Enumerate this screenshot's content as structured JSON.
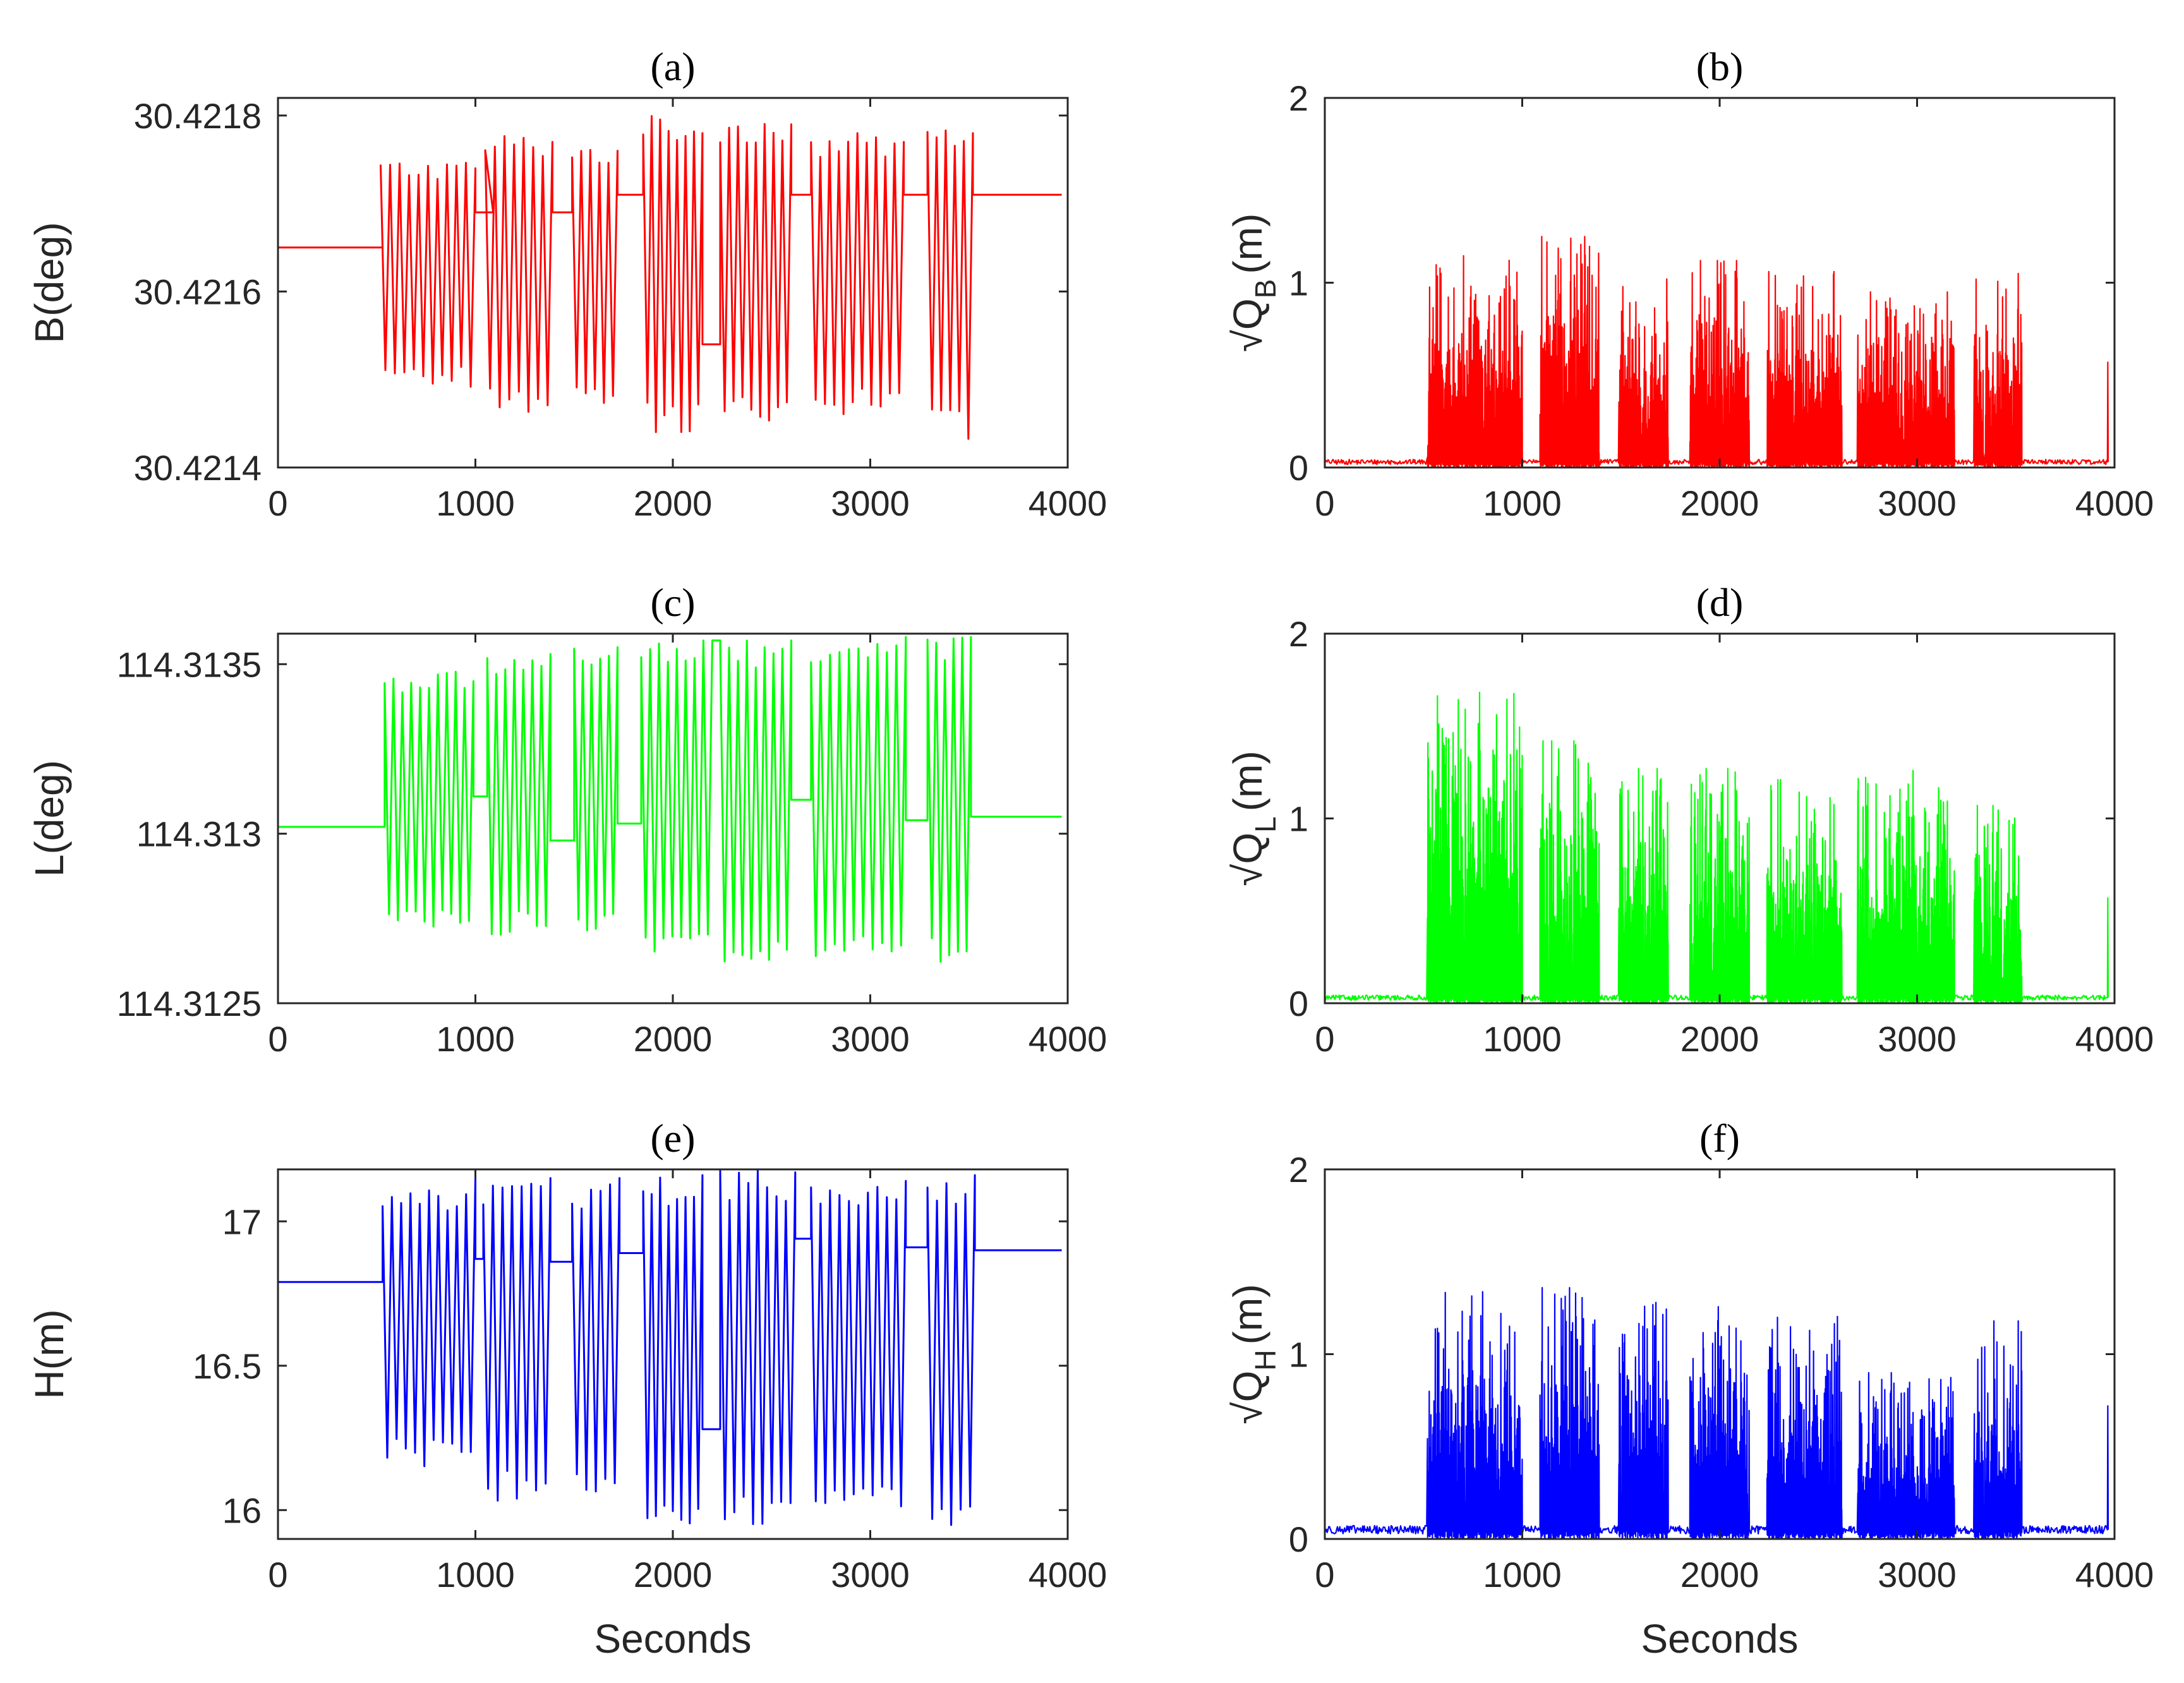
{
  "figure": {
    "xlabel": "Seconds"
  },
  "chart_data": [
    {
      "id": "a",
      "type": "line",
      "title": "(a)",
      "ylabel": "B(deg)",
      "color": "#ff0000",
      "trace": "position",
      "xlim": [
        0,
        4000
      ],
      "ylim": [
        30.4214,
        30.42182
      ],
      "xticks": [
        0,
        1000,
        2000,
        3000,
        4000
      ],
      "xtick_labels": [
        "0",
        "1000",
        "2000",
        "3000",
        "4000"
      ],
      "yticks": [
        30.4214,
        30.4216,
        30.4218
      ],
      "ytick_labels": [
        "30.4214",
        "30.4216",
        "30.4218"
      ],
      "x_end": 3970,
      "bursts": [
        [
          520,
          1000,
          30.42149,
          30.42175,
          30.42174
        ],
        [
          1050,
          1390,
          30.42146,
          30.42178,
          30.42177
        ],
        [
          1490,
          1720,
          30.42147,
          30.42177,
          30.42176
        ],
        [
          1850,
          2150,
          30.42144,
          30.4218,
          30.42178
        ],
        [
          2240,
          2600,
          30.42145,
          30.4218,
          30.42179
        ],
        [
          2700,
          3170,
          30.42146,
          30.42178,
          30.42177
        ],
        [
          3290,
          3520,
          30.42143,
          30.42179,
          30.42178
        ]
      ],
      "flats": [
        [
          0,
          530,
          30.42165
        ],
        [
          1000,
          1090,
          30.42169
        ],
        [
          1390,
          1490,
          30.42169
        ],
        [
          1720,
          1850,
          30.42171
        ],
        [
          2150,
          2240,
          30.42154
        ],
        [
          2600,
          2700,
          30.42171
        ],
        [
          3170,
          3290,
          30.42171
        ],
        [
          3520,
          3970,
          30.42171
        ]
      ],
      "note": "Latitude B of the kinematic trajectory; flats sit between oscillating survey bursts"
    },
    {
      "id": "b",
      "type": "line",
      "title": "(b)",
      "ylabel_main": "√Q",
      "ylabel_sub": "B",
      "ylabel_tail": "(m)",
      "color": "#ff0000",
      "trace": "noise",
      "xlim": [
        0,
        4000
      ],
      "ylim": [
        0,
        2
      ],
      "xticks": [
        0,
        1000,
        2000,
        3000,
        4000
      ],
      "xtick_labels": [
        "0",
        "1000",
        "2000",
        "3000",
        "4000"
      ],
      "yticks": [
        0,
        1,
        2
      ],
      "ytick_labels": [
        "0",
        "1",
        "2"
      ],
      "x_end": 3970,
      "baseline": 0.03,
      "final_spike": 0.57,
      "bursts": [
        [
          520,
          1000,
          1.15
        ],
        [
          1090,
          1390,
          1.25
        ],
        [
          1490,
          1740,
          1.02
        ],
        [
          1850,
          2150,
          1.12
        ],
        [
          2240,
          2620,
          1.06
        ],
        [
          2700,
          3190,
          0.95
        ],
        [
          3290,
          3530,
          1.05
        ]
      ]
    },
    {
      "id": "c",
      "type": "line",
      "title": "(c)",
      "ylabel": "L(deg)",
      "color": "#00ff00",
      "trace": "position",
      "xlim": [
        0,
        4000
      ],
      "ylim": [
        114.3125,
        114.31359
      ],
      "xticks": [
        0,
        1000,
        2000,
        3000,
        4000
      ],
      "xtick_labels": [
        "0",
        "1000",
        "2000",
        "3000",
        "4000"
      ],
      "yticks": [
        114.3125,
        114.313,
        114.3135
      ],
      "ytick_labels": [
        "114.3125",
        "114.313",
        "114.3135"
      ],
      "x_end": 3970,
      "bursts": [
        [
          540,
          990,
          114.31272,
          114.31348,
          114.31345
        ],
        [
          1060,
          1380,
          114.31269,
          114.31354,
          114.31353
        ],
        [
          1500,
          1720,
          114.31269,
          114.31356,
          114.31355
        ],
        [
          1840,
          2200,
          114.31263,
          114.31357,
          114.31357
        ],
        [
          2240,
          2600,
          114.31262,
          114.31357,
          114.31357
        ],
        [
          2700,
          3180,
          114.31261,
          114.31358,
          114.31358
        ],
        [
          3290,
          3510,
          114.31262,
          114.31358,
          114.31358
        ]
      ],
      "flats": [
        [
          0,
          540,
          114.31302
        ],
        [
          990,
          1060,
          114.31311
        ],
        [
          1380,
          1500,
          114.31298
        ],
        [
          1720,
          1840,
          114.31303
        ],
        [
          2200,
          2240,
          114.31357
        ],
        [
          2600,
          2700,
          114.3131
        ],
        [
          3180,
          3290,
          114.31304
        ],
        [
          3510,
          3970,
          114.31305
        ]
      ]
    },
    {
      "id": "d",
      "type": "line",
      "title": "(d)",
      "ylabel_main": "√Q",
      "ylabel_sub": "L",
      "ylabel_tail": "(m)",
      "color": "#00ff00",
      "trace": "noise",
      "xlim": [
        0,
        4000
      ],
      "ylim": [
        0,
        2
      ],
      "xticks": [
        0,
        1000,
        2000,
        3000,
        4000
      ],
      "xtick_labels": [
        "0",
        "1000",
        "2000",
        "3000",
        "4000"
      ],
      "yticks": [
        0,
        1,
        2
      ],
      "ytick_labels": [
        "0",
        "1",
        "2"
      ],
      "x_end": 3970,
      "baseline": 0.03,
      "final_spike": 0.57,
      "bursts": [
        [
          520,
          1000,
          1.71
        ],
        [
          1090,
          1390,
          1.42
        ],
        [
          1490,
          1740,
          1.27
        ],
        [
          1850,
          2150,
          1.27
        ],
        [
          2240,
          2620,
          1.21
        ],
        [
          2700,
          3190,
          1.26
        ],
        [
          3290,
          3530,
          1.07
        ]
      ]
    },
    {
      "id": "e",
      "type": "line",
      "title": "(e)",
      "ylabel": "H(m)",
      "color": "#0000ff",
      "trace": "position",
      "xlim": [
        0,
        4000
      ],
      "ylim": [
        15.9,
        17.18
      ],
      "xticks": [
        0,
        1000,
        2000,
        3000,
        4000
      ],
      "xtick_labels": [
        "0",
        "1000",
        "2000",
        "3000",
        "4000"
      ],
      "yticks": [
        16,
        16.5,
        17
      ],
      "ytick_labels": [
        "16",
        "16.5",
        "17"
      ],
      "x_end": 3970,
      "bursts": [
        [
          530,
          1000,
          16.15,
          17.12,
          17.15
        ],
        [
          1040,
          1380,
          16.03,
          17.15,
          17.15
        ],
        [
          1490,
          1730,
          16.06,
          17.13,
          17.15
        ],
        [
          1850,
          2150,
          15.92,
          17.16,
          17.16
        ],
        [
          2240,
          2620,
          15.95,
          17.18,
          17.17
        ],
        [
          2700,
          3180,
          16.0,
          17.14,
          17.14
        ],
        [
          3290,
          3530,
          15.94,
          17.15,
          17.16
        ]
      ],
      "flats": [
        [
          0,
          530,
          16.79
        ],
        [
          1000,
          1040,
          16.87
        ],
        [
          1380,
          1490,
          16.86
        ],
        [
          1730,
          1850,
          16.89
        ],
        [
          2150,
          2240,
          16.28
        ],
        [
          2620,
          2700,
          16.94
        ],
        [
          3180,
          3290,
          16.91
        ],
        [
          3530,
          3970,
          16.9
        ]
      ]
    },
    {
      "id": "f",
      "type": "line",
      "title": "(f)",
      "ylabel_main": "√Q",
      "ylabel_sub": "H",
      "ylabel_tail": "(m)",
      "color": "#0000ff",
      "trace": "noise",
      "xlim": [
        0,
        4000
      ],
      "ylim": [
        0,
        2
      ],
      "xticks": [
        0,
        1000,
        2000,
        3000,
        4000
      ],
      "xtick_labels": [
        "0",
        "1000",
        "2000",
        "3000",
        "4000"
      ],
      "yticks": [
        0,
        1,
        2
      ],
      "ytick_labels": [
        "0",
        "1",
        "2"
      ],
      "x_end": 3970,
      "baseline": 0.05,
      "final_spike": 0.72,
      "bursts": [
        [
          520,
          1000,
          1.34
        ],
        [
          1090,
          1390,
          1.36
        ],
        [
          1490,
          1740,
          1.28
        ],
        [
          1850,
          2150,
          1.26
        ],
        [
          2240,
          2620,
          1.22
        ],
        [
          2700,
          3190,
          0.9
        ],
        [
          3290,
          3530,
          1.18
        ]
      ]
    }
  ]
}
